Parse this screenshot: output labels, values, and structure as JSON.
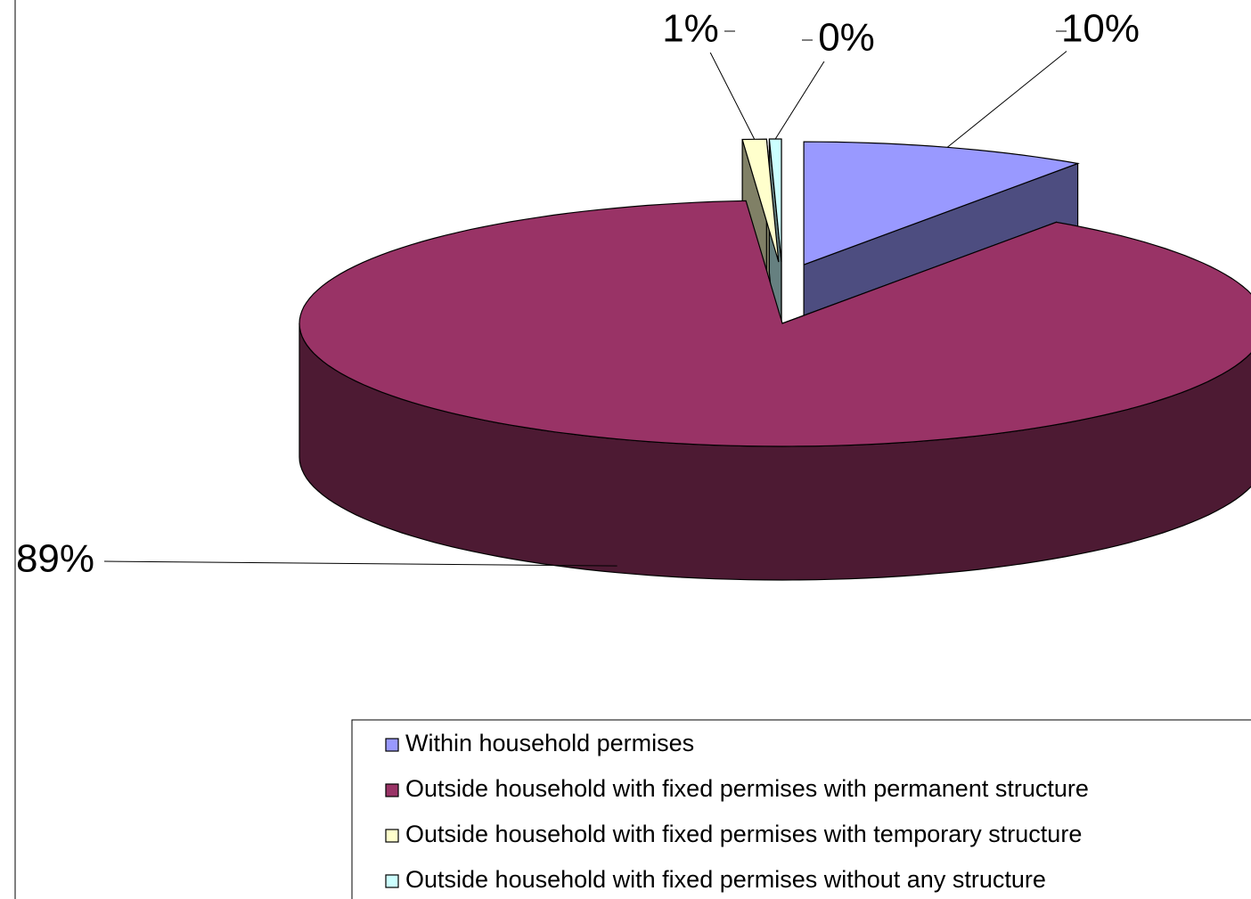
{
  "chart_data": {
    "type": "pie3d",
    "categories": [
      "Within household permises",
      "Outside household with fixed permises with permanent structure",
      "Outside household with fixed permises with temporary structure",
      "Outside household with fixed permises without any structure"
    ],
    "values": [
      9.6,
      89.2,
      0.8,
      0.4
    ],
    "value_labels": [
      "10%",
      "89%",
      "1%",
      "0%"
    ],
    "colors": [
      "#9999ff",
      "#993366",
      "#ffffcc",
      "#ccffff"
    ]
  }
}
